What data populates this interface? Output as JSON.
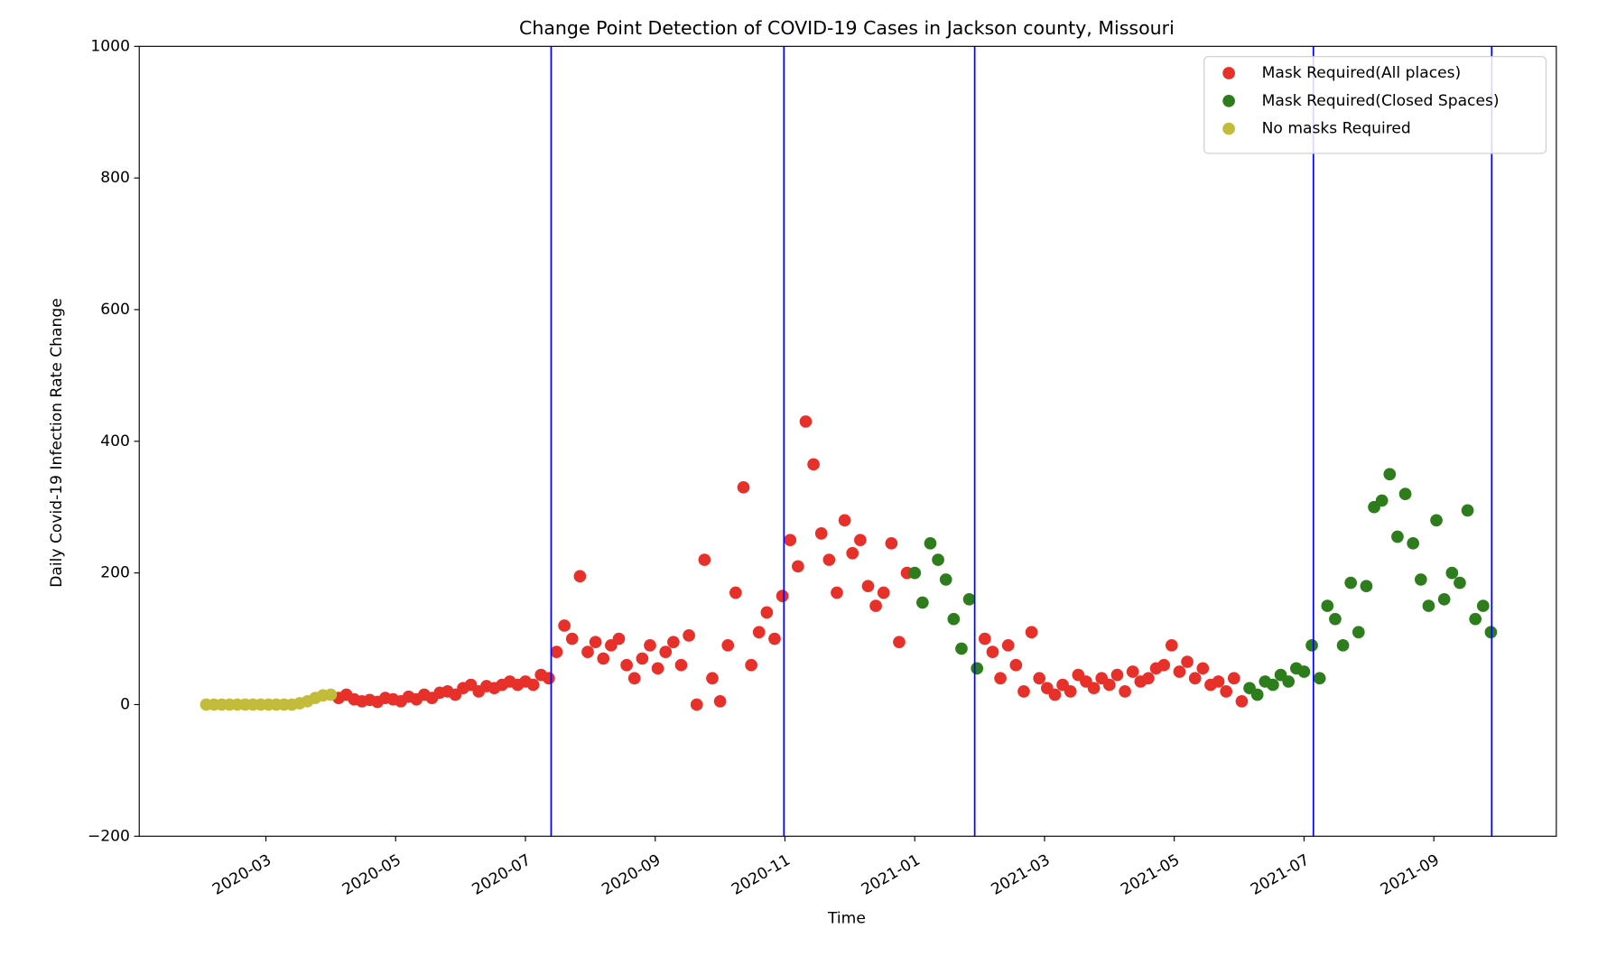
{
  "chart_data": {
    "type": "scatter",
    "title": "Change Point Detection of COVID-19 Cases in Jackson county, Missouri",
    "x_label": "Time",
    "y_label": "Daily Covid-19 Infection Rate Change",
    "xlim": [
      2020.004,
      2021.824
    ],
    "ylim": [
      -200,
      1000
    ],
    "xticks": [
      {
        "value": 2020.1667,
        "label": "2020-03"
      },
      {
        "value": 2020.3333,
        "label": "2020-05"
      },
      {
        "value": 2020.5,
        "label": "2020-07"
      },
      {
        "value": 2020.6667,
        "label": "2020-09"
      },
      {
        "value": 2020.8333,
        "label": "2020-11"
      },
      {
        "value": 2021.0,
        "label": "2021-01"
      },
      {
        "value": 2021.1667,
        "label": "2021-03"
      },
      {
        "value": 2021.3333,
        "label": "2021-05"
      },
      {
        "value": 2021.5,
        "label": "2021-07"
      },
      {
        "value": 2021.6667,
        "label": "2021-09"
      }
    ],
    "yticks": [
      {
        "value": -200,
        "label": "−200"
      },
      0,
      200,
      400,
      600,
      800,
      1000
    ],
    "change_points": [
      2020.533,
      2020.832,
      2021.077,
      2021.512,
      2021.741
    ],
    "change_point_color": "#0000ff",
    "legend": "upper right",
    "series": [
      {
        "name": "Mask Required(All places)",
        "color": "#e8302a",
        "x": [
          2020.26,
          2020.27,
          2020.28,
          2020.29,
          2020.3,
          2020.31,
          2020.32,
          2020.33,
          2020.34,
          2020.35,
          2020.36,
          2020.37,
          2020.38,
          2020.39,
          2020.4,
          2020.41,
          2020.42,
          2020.43,
          2020.44,
          2020.45,
          2020.46,
          2020.47,
          2020.48,
          2020.49,
          2020.5,
          2020.51,
          2020.52,
          2020.53,
          2020.54,
          2020.55,
          2020.56,
          2020.57,
          2020.58,
          2020.59,
          2020.6,
          2020.61,
          2020.62,
          2020.63,
          2020.64,
          2020.65,
          2020.66,
          2020.67,
          2020.68,
          2020.69,
          2020.7,
          2020.71,
          2020.72,
          2020.73,
          2020.74,
          2020.75,
          2020.76,
          2020.77,
          2020.78,
          2020.79,
          2020.8,
          2020.81,
          2020.82,
          2020.83,
          2020.84,
          2020.85,
          2020.86,
          2020.87,
          2020.88,
          2020.89,
          2020.9,
          2020.91,
          2020.92,
          2020.93,
          2020.94,
          2020.95,
          2020.96,
          2020.97,
          2020.98,
          2020.99,
          2021.09,
          2021.1,
          2021.11,
          2021.12,
          2021.13,
          2021.14,
          2021.15,
          2021.16,
          2021.17,
          2021.18,
          2021.19,
          2021.2,
          2021.21,
          2021.22,
          2021.23,
          2021.24,
          2021.25,
          2021.26,
          2021.27,
          2021.28,
          2021.29,
          2021.3,
          2021.31,
          2021.32,
          2021.33,
          2021.34,
          2021.35,
          2021.36,
          2021.37,
          2021.38,
          2021.39,
          2021.4,
          2021.41,
          2021.42
        ],
        "values": [
          10,
          15,
          8,
          5,
          7,
          4,
          10,
          8,
          5,
          12,
          8,
          15,
          10,
          18,
          20,
          15,
          25,
          30,
          20,
          28,
          25,
          30,
          35,
          30,
          35,
          30,
          45,
          40,
          80,
          120,
          100,
          195,
          80,
          95,
          70,
          90,
          100,
          60,
          40,
          70,
          90,
          55,
          80,
          95,
          60,
          105,
          0,
          220,
          40,
          5,
          90,
          170,
          330,
          60,
          110,
          140,
          100,
          165,
          250,
          210,
          430,
          365,
          260,
          220,
          170,
          280,
          230,
          250,
          180,
          150,
          170,
          245,
          95,
          200,
          100,
          80,
          40,
          90,
          60,
          20,
          110,
          40,
          25,
          15,
          30,
          20,
          45,
          35,
          25,
          40,
          30,
          45,
          20,
          50,
          35,
          40,
          55,
          60,
          90,
          50,
          65,
          40,
          55,
          30,
          35,
          20,
          40,
          5
        ]
      },
      {
        "name": "Mask Required(Closed Spaces)",
        "color": "#2e7d1c",
        "x": [
          2021.0,
          2021.01,
          2021.02,
          2021.03,
          2021.04,
          2021.05,
          2021.06,
          2021.07,
          2021.08,
          2021.43,
          2021.44,
          2021.45,
          2021.46,
          2021.47,
          2021.48,
          2021.49,
          2021.5,
          2021.51,
          2021.52,
          2021.53,
          2021.54,
          2021.55,
          2021.56,
          2021.57,
          2021.58,
          2021.59,
          2021.6,
          2021.61,
          2021.62,
          2021.63,
          2021.64,
          2021.65,
          2021.66,
          2021.67,
          2021.68,
          2021.69,
          2021.7,
          2021.71,
          2021.72,
          2021.73,
          2021.74
        ],
        "values": [
          200,
          155,
          245,
          220,
          190,
          130,
          85,
          160,
          55,
          25,
          15,
          35,
          30,
          45,
          35,
          55,
          50,
          90,
          40,
          150,
          130,
          90,
          185,
          110,
          180,
          300,
          310,
          350,
          255,
          320,
          245,
          190,
          150,
          280,
          160,
          200,
          185,
          295,
          130,
          150,
          110
        ]
      },
      {
        "name": "No masks Required",
        "color": "#c2bc3a",
        "x": [
          2020.09,
          2020.1,
          2020.11,
          2020.12,
          2020.13,
          2020.14,
          2020.15,
          2020.16,
          2020.17,
          2020.18,
          2020.19,
          2020.2,
          2020.21,
          2020.22,
          2020.23,
          2020.24,
          2020.25
        ],
        "values": [
          0,
          0,
          0,
          0,
          0,
          0,
          0,
          0,
          0,
          0,
          0,
          0,
          2,
          5,
          10,
          14,
          15
        ]
      }
    ]
  }
}
